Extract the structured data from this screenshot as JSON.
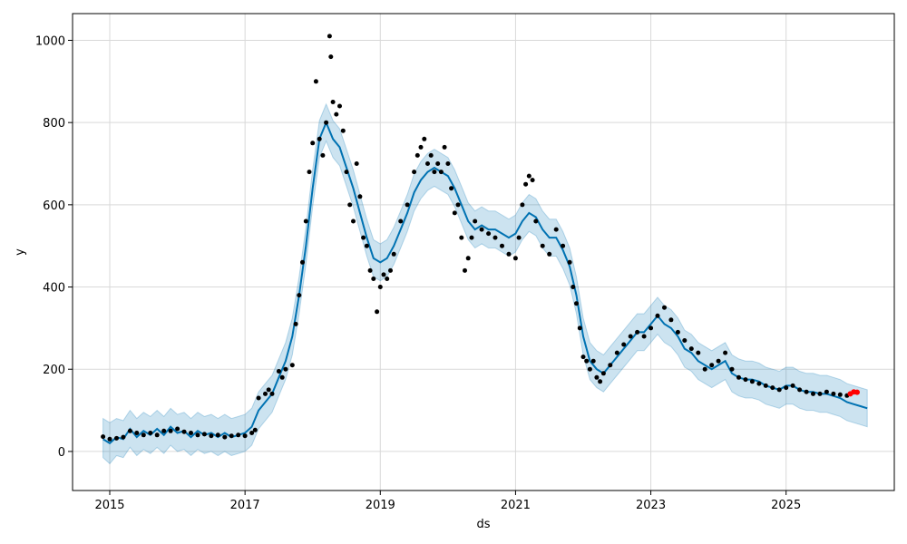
{
  "chart_data": {
    "type": "line",
    "title": "",
    "xlabel": "ds",
    "ylabel": "y",
    "xlim": [
      2014.45,
      2026.6
    ],
    "ylim": [
      -95,
      1065
    ],
    "x_ticks": [
      2015,
      2017,
      2019,
      2021,
      2023,
      2025
    ],
    "x_tick_labels": [
      "2015",
      "2017",
      "2019",
      "2021",
      "2023",
      "2025"
    ],
    "y_ticks": [
      0,
      200,
      400,
      600,
      800,
      1000
    ],
    "y_tick_labels": [
      "0",
      "200",
      "400",
      "600",
      "800",
      "1000"
    ],
    "grid": true,
    "colors": {
      "forecast_line": "#0072B2",
      "uncertainty_band": "#0072B2",
      "observed_points": "#000000",
      "recent_points": "#ff0000",
      "grid": "#d9d9d9"
    },
    "series": [
      {
        "kind": "forecast",
        "x": [
          2014.9,
          2015.0,
          2015.1,
          2015.2,
          2015.3,
          2015.4,
          2015.5,
          2015.6,
          2015.7,
          2015.8,
          2015.9,
          2016.0,
          2016.1,
          2016.2,
          2016.3,
          2016.4,
          2016.5,
          2016.6,
          2016.7,
          2016.8,
          2016.9,
          2017.0,
          2017.1,
          2017.2,
          2017.3,
          2017.4,
          2017.5,
          2017.6,
          2017.7,
          2017.8,
          2017.9,
          2018.0,
          2018.1,
          2018.2,
          2018.3,
          2018.4,
          2018.5,
          2018.6,
          2018.7,
          2018.8,
          2018.9,
          2019.0,
          2019.1,
          2019.2,
          2019.3,
          2019.4,
          2019.5,
          2019.6,
          2019.7,
          2019.8,
          2019.9,
          2020.0,
          2020.1,
          2020.2,
          2020.3,
          2020.4,
          2020.5,
          2020.6,
          2020.7,
          2020.8,
          2020.9,
          2021.0,
          2021.1,
          2021.2,
          2021.3,
          2021.4,
          2021.5,
          2021.6,
          2021.7,
          2021.8,
          2021.9,
          2022.0,
          2022.1,
          2022.2,
          2022.3,
          2022.4,
          2022.5,
          2022.6,
          2022.7,
          2022.8,
          2022.9,
          2023.0,
          2023.1,
          2023.2,
          2023.3,
          2023.4,
          2023.5,
          2023.6,
          2023.7,
          2023.8,
          2023.9,
          2024.0,
          2024.1,
          2024.2,
          2024.3,
          2024.4,
          2024.5,
          2024.6,
          2024.7,
          2024.8,
          2024.9,
          2025.0,
          2025.1,
          2025.2,
          2025.3,
          2025.4,
          2025.5,
          2025.6,
          2025.7,
          2025.8,
          2025.9,
          2026.0,
          2026.1,
          2026.2
        ],
        "y": [
          30,
          20,
          35,
          30,
          55,
          35,
          50,
          40,
          55,
          40,
          60,
          45,
          50,
          35,
          50,
          40,
          45,
          35,
          45,
          35,
          40,
          45,
          60,
          100,
          120,
          140,
          180,
          220,
          280,
          380,
          500,
          640,
          760,
          800,
          760,
          740,
          690,
          640,
          580,
          520,
          470,
          460,
          470,
          500,
          540,
          580,
          630,
          660,
          680,
          690,
          680,
          670,
          640,
          600,
          560,
          540,
          550,
          540,
          540,
          530,
          520,
          530,
          560,
          580,
          570,
          540,
          520,
          520,
          490,
          450,
          380,
          280,
          220,
          200,
          190,
          210,
          230,
          250,
          270,
          290,
          290,
          310,
          330,
          310,
          300,
          280,
          250,
          240,
          220,
          210,
          200,
          210,
          220,
          190,
          180,
          175,
          175,
          170,
          160,
          155,
          150,
          160,
          160,
          150,
          145,
          145,
          140,
          140,
          135,
          130,
          120,
          115,
          110,
          105
        ]
      },
      {
        "kind": "uncertainty_band",
        "x": [
          2014.9,
          2015.0,
          2015.1,
          2015.2,
          2015.3,
          2015.4,
          2015.5,
          2015.6,
          2015.7,
          2015.8,
          2015.9,
          2016.0,
          2016.1,
          2016.2,
          2016.3,
          2016.4,
          2016.5,
          2016.6,
          2016.7,
          2016.8,
          2016.9,
          2017.0,
          2017.1,
          2017.2,
          2017.3,
          2017.4,
          2017.5,
          2017.6,
          2017.7,
          2017.8,
          2017.9,
          2018.0,
          2018.1,
          2018.2,
          2018.3,
          2018.4,
          2018.5,
          2018.6,
          2018.7,
          2018.8,
          2018.9,
          2019.0,
          2019.1,
          2019.2,
          2019.3,
          2019.4,
          2019.5,
          2019.6,
          2019.7,
          2019.8,
          2019.9,
          2020.0,
          2020.1,
          2020.2,
          2020.3,
          2020.4,
          2020.5,
          2020.6,
          2020.7,
          2020.8,
          2020.9,
          2021.0,
          2021.1,
          2021.2,
          2021.3,
          2021.4,
          2021.5,
          2021.6,
          2021.7,
          2021.8,
          2021.9,
          2022.0,
          2022.1,
          2022.2,
          2022.3,
          2022.4,
          2022.5,
          2022.6,
          2022.7,
          2022.8,
          2022.9,
          2023.0,
          2023.1,
          2023.2,
          2023.3,
          2023.4,
          2023.5,
          2023.6,
          2023.7,
          2023.8,
          2023.9,
          2024.0,
          2024.1,
          2024.2,
          2024.3,
          2024.4,
          2024.5,
          2024.6,
          2024.7,
          2024.8,
          2024.9,
          2025.0,
          2025.1,
          2025.2,
          2025.3,
          2025.4,
          2025.5,
          2025.6,
          2025.7,
          2025.8,
          2025.9,
          2026.0,
          2026.1,
          2026.2
        ],
        "lower": [
          -15,
          -30,
          -10,
          -15,
          10,
          -10,
          5,
          -5,
          10,
          -5,
          15,
          0,
          5,
          -10,
          5,
          -5,
          0,
          -10,
          0,
          -10,
          -5,
          0,
          15,
          55,
          75,
          95,
          135,
          175,
          235,
          335,
          455,
          595,
          715,
          755,
          715,
          695,
          645,
          595,
          535,
          475,
          425,
          415,
          425,
          455,
          495,
          535,
          585,
          615,
          635,
          645,
          635,
          625,
          595,
          555,
          515,
          495,
          505,
          495,
          495,
          485,
          475,
          485,
          515,
          535,
          525,
          495,
          475,
          475,
          445,
          405,
          335,
          235,
          175,
          155,
          145,
          165,
          185,
          205,
          225,
          245,
          245,
          265,
          285,
          265,
          255,
          235,
          205,
          195,
          175,
          165,
          155,
          165,
          175,
          145,
          135,
          130,
          130,
          125,
          115,
          110,
          105,
          115,
          115,
          105,
          100,
          100,
          95,
          95,
          90,
          85,
          75,
          70,
          65,
          60
        ],
        "upper": [
          80,
          70,
          80,
          75,
          100,
          80,
          95,
          85,
          100,
          85,
          105,
          90,
          95,
          80,
          95,
          85,
          90,
          80,
          90,
          80,
          85,
          90,
          105,
          145,
          165,
          185,
          225,
          265,
          325,
          425,
          545,
          685,
          805,
          845,
          805,
          785,
          735,
          685,
          625,
          565,
          515,
          505,
          515,
          545,
          585,
          625,
          675,
          705,
          725,
          735,
          725,
          715,
          685,
          645,
          605,
          585,
          595,
          585,
          585,
          575,
          565,
          575,
          605,
          625,
          615,
          585,
          565,
          565,
          535,
          495,
          425,
          325,
          265,
          245,
          235,
          255,
          275,
          295,
          315,
          335,
          335,
          355,
          375,
          355,
          345,
          325,
          295,
          285,
          265,
          255,
          245,
          255,
          265,
          235,
          225,
          220,
          220,
          215,
          205,
          200,
          195,
          205,
          205,
          195,
          190,
          190,
          185,
          185,
          180,
          175,
          165,
          160,
          155,
          150
        ]
      },
      {
        "kind": "observed",
        "x": [
          2014.9,
          2015.0,
          2015.1,
          2015.2,
          2015.3,
          2015.4,
          2015.5,
          2015.6,
          2015.7,
          2015.8,
          2015.9,
          2016.0,
          2016.1,
          2016.2,
          2016.3,
          2016.4,
          2016.5,
          2016.6,
          2016.7,
          2016.8,
          2016.9,
          2017.0,
          2017.1,
          2017.15,
          2017.2,
          2017.3,
          2017.35,
          2017.4,
          2017.5,
          2017.55,
          2017.6,
          2017.7,
          2017.75,
          2017.8,
          2017.85,
          2017.9,
          2017.95,
          2018.0,
          2018.05,
          2018.1,
          2018.15,
          2018.2,
          2018.25,
          2018.27,
          2018.3,
          2018.35,
          2018.4,
          2018.45,
          2018.5,
          2018.55,
          2018.6,
          2018.65,
          2018.7,
          2018.75,
          2018.8,
          2018.85,
          2018.9,
          2018.95,
          2019.0,
          2019.05,
          2019.1,
          2019.15,
          2019.2,
          2019.3,
          2019.4,
          2019.5,
          2019.55,
          2019.6,
          2019.65,
          2019.7,
          2019.75,
          2019.8,
          2019.85,
          2019.9,
          2019.95,
          2020.0,
          2020.05,
          2020.1,
          2020.15,
          2020.2,
          2020.25,
          2020.3,
          2020.35,
          2020.4,
          2020.5,
          2020.6,
          2020.7,
          2020.8,
          2020.9,
          2021.0,
          2021.05,
          2021.1,
          2021.15,
          2021.2,
          2021.25,
          2021.3,
          2021.4,
          2021.5,
          2021.6,
          2021.7,
          2021.8,
          2021.85,
          2021.9,
          2021.95,
          2022.0,
          2022.05,
          2022.1,
          2022.15,
          2022.2,
          2022.25,
          2022.3,
          2022.4,
          2022.5,
          2022.6,
          2022.7,
          2022.8,
          2022.9,
          2023.0,
          2023.1,
          2023.2,
          2023.3,
          2023.4,
          2023.5,
          2023.6,
          2023.7,
          2023.8,
          2023.9,
          2024.0,
          2024.1,
          2024.2,
          2024.3,
          2024.4,
          2024.5,
          2024.6,
          2024.7,
          2024.8,
          2024.9,
          2025.0,
          2025.1,
          2025.2,
          2025.3,
          2025.4,
          2025.5,
          2025.6,
          2025.7,
          2025.8,
          2025.9
        ],
        "y": [
          36,
          30,
          32,
          35,
          50,
          45,
          40,
          45,
          40,
          50,
          50,
          55,
          48,
          45,
          40,
          42,
          38,
          40,
          35,
          38,
          40,
          38,
          45,
          52,
          130,
          140,
          150,
          140,
          195,
          180,
          200,
          210,
          310,
          380,
          460,
          560,
          680,
          750,
          900,
          760,
          720,
          800,
          1010,
          960,
          850,
          820,
          840,
          780,
          680,
          600,
          560,
          700,
          620,
          520,
          500,
          440,
          420,
          340,
          400,
          430,
          420,
          440,
          480,
          560,
          600,
          680,
          720,
          740,
          760,
          700,
          720,
          680,
          700,
          680,
          740,
          700,
          640,
          580,
          600,
          520,
          440,
          470,
          520,
          560,
          540,
          530,
          520,
          500,
          480,
          470,
          520,
          600,
          650,
          670,
          660,
          560,
          500,
          480,
          540,
          500,
          460,
          400,
          360,
          300,
          230,
          220,
          200,
          220,
          180,
          170,
          190,
          210,
          240,
          260,
          280,
          290,
          280,
          300,
          330,
          350,
          320,
          290,
          270,
          250,
          240,
          200,
          210,
          220,
          240,
          200,
          180,
          175,
          170,
          165,
          160,
          155,
          150,
          155,
          160,
          150,
          145,
          140,
          140,
          145,
          140,
          138,
          136
        ]
      },
      {
        "kind": "recent",
        "x": [
          2025.95,
          2026.0,
          2026.05
        ],
        "y": [
          140,
          145,
          144
        ]
      }
    ]
  }
}
